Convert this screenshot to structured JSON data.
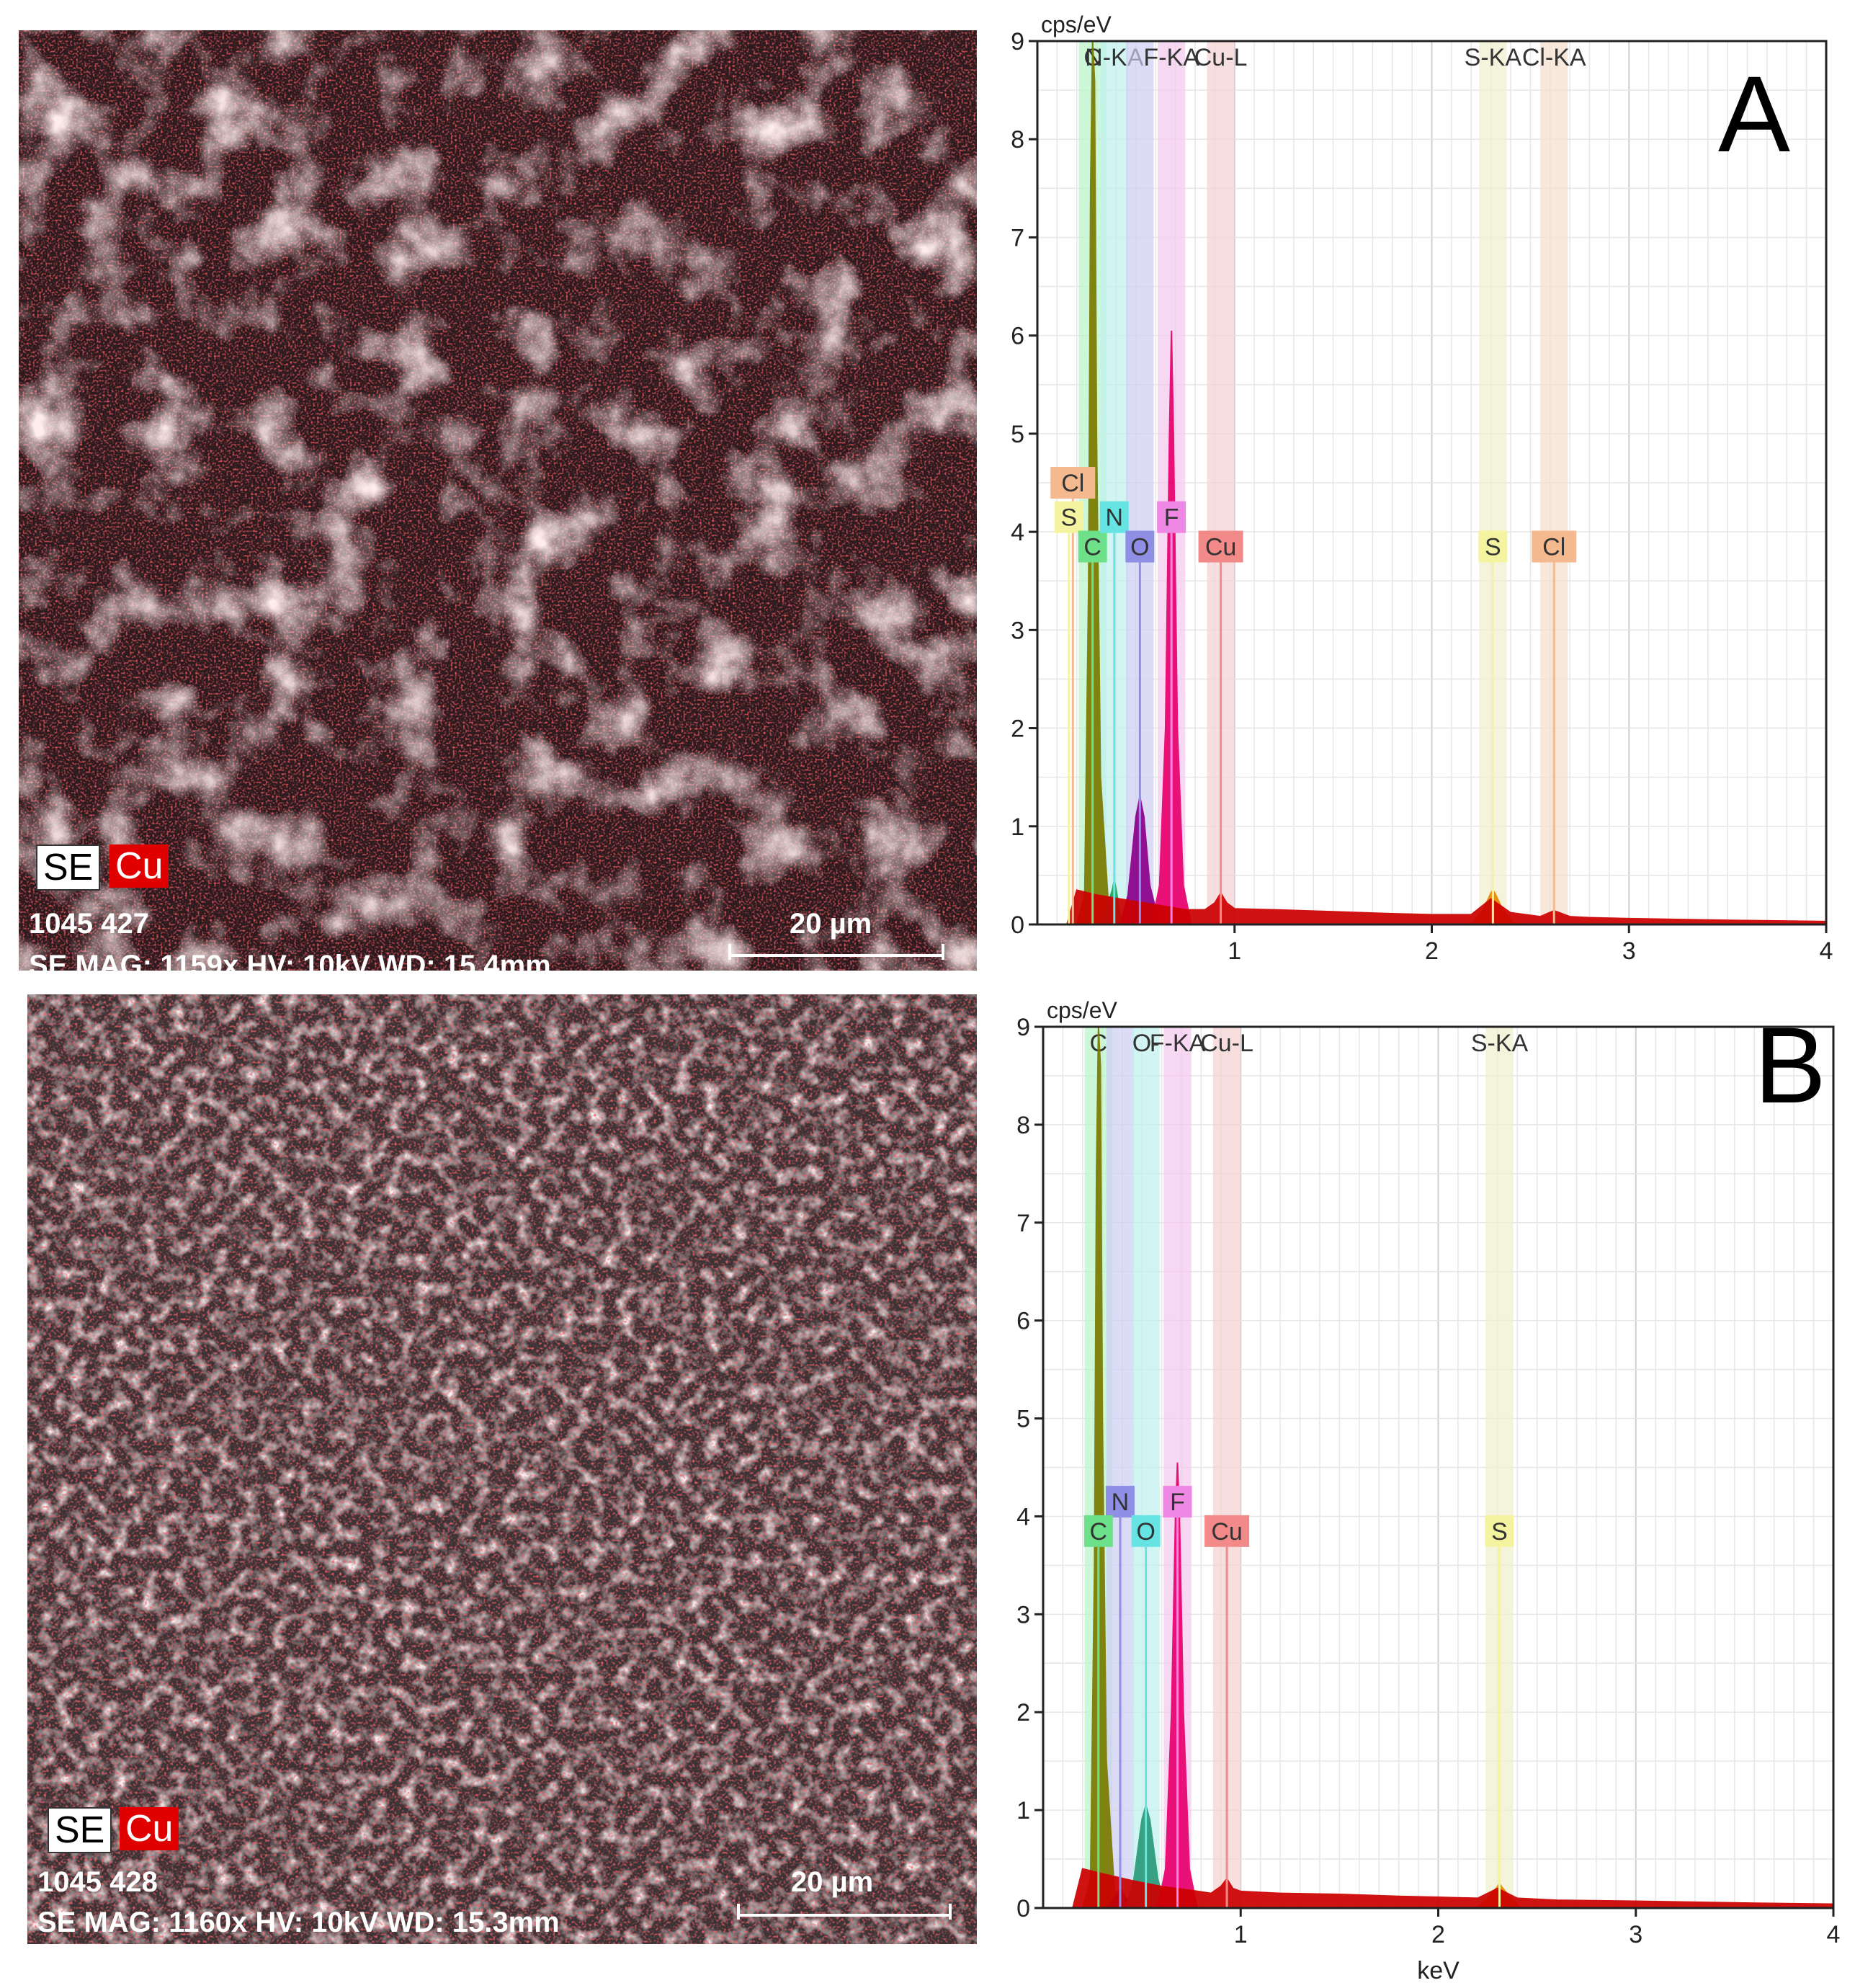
{
  "panels": [
    {
      "sem": {
        "badge_se": "SE",
        "badge_cu": "Cu",
        "sample_id": "1045 427",
        "info": "SE  MAG: 1159x  HV: 10kV  WD: 15.4mm",
        "scale_label": "20 µm"
      }
    },
    {
      "sem": {
        "badge_se": "SE",
        "badge_cu": "Cu",
        "sample_id": "1045 428",
        "info": "SE  MAG: 1160x  HV: 10kV  WD: 15.3mm",
        "scale_label": "20 µm"
      }
    }
  ],
  "chart_data": [
    {
      "type": "area",
      "panel_label": "A",
      "ylabel": "cps/eV",
      "xlabel": "",
      "xlim": [
        0.0,
        4.0
      ],
      "ylim": [
        0,
        9
      ],
      "x_ticks": [
        "1",
        "2",
        "3",
        "4"
      ],
      "y_ticks": [
        "0",
        "1",
        "2",
        "3",
        "4",
        "5",
        "6",
        "7",
        "8",
        "9"
      ],
      "grid": true,
      "element_bands": [
        {
          "label": "C",
          "x": 0.28,
          "color": "#b7f5c9"
        },
        {
          "label": "N-KA",
          "x": 0.39,
          "color": "#bff1ee"
        },
        {
          "label": "",
          "x": 0.52,
          "color": "#cfcdf2"
        },
        {
          "label": "F-KA",
          "x": 0.68,
          "color": "#f4c8ee"
        },
        {
          "label": "Cu-L",
          "x": 0.93,
          "color": "#f3d1d1"
        },
        {
          "label": "S-KA",
          "x": 2.31,
          "color": "#f0f0cf"
        },
        {
          "label": "Cl-KA",
          "x": 2.62,
          "color": "#f5ddcc"
        }
      ],
      "markers": [
        {
          "label": "Cl",
          "x": 0.18,
          "level": 4.5,
          "color": "#f4b98e"
        },
        {
          "label": "S",
          "x": 0.16,
          "level": 4.15,
          "color": "#f4f4a0"
        },
        {
          "label": "C",
          "x": 0.28,
          "level": 3.85,
          "color": "#6fe08a"
        },
        {
          "label": "N",
          "x": 0.39,
          "level": 4.15,
          "color": "#66e3e3"
        },
        {
          "label": "O",
          "x": 0.52,
          "level": 3.85,
          "color": "#8f8fe6"
        },
        {
          "label": "F",
          "x": 0.68,
          "level": 4.15,
          "color": "#ef88e4"
        },
        {
          "label": "Cu",
          "x": 0.93,
          "level": 3.85,
          "color": "#f28a8a"
        },
        {
          "label": "S",
          "x": 2.31,
          "level": 3.85,
          "color": "#f4f4a0"
        },
        {
          "label": "Cl",
          "x": 2.62,
          "level": 3.85,
          "color": "#f4b98e"
        }
      ],
      "series": [
        {
          "name": "C",
          "color": "#7a7a00",
          "x": [
            0.2,
            0.24,
            0.26,
            0.27,
            0.28,
            0.29,
            0.3,
            0.32,
            0.36,
            0.4
          ],
          "y": [
            0.0,
            0.3,
            3.5,
            7.5,
            9.0,
            8.6,
            5.0,
            1.5,
            0.2,
            0.0
          ]
        },
        {
          "name": "N",
          "color": "#1fa35a",
          "x": [
            0.3,
            0.34,
            0.38,
            0.39,
            0.4,
            0.42,
            0.45
          ],
          "y": [
            0.0,
            0.1,
            0.35,
            0.45,
            0.35,
            0.1,
            0.0
          ]
        },
        {
          "name": "O",
          "color": "#8a008a",
          "x": [
            0.42,
            0.46,
            0.5,
            0.52,
            0.54,
            0.57,
            0.62
          ],
          "y": [
            0.0,
            0.3,
            1.1,
            1.3,
            1.1,
            0.4,
            0.0
          ]
        },
        {
          "name": "F",
          "color": "#e8006e",
          "x": [
            0.58,
            0.62,
            0.65,
            0.67,
            0.68,
            0.69,
            0.71,
            0.74,
            0.78
          ],
          "y": [
            0.0,
            0.4,
            2.0,
            5.0,
            6.05,
            5.0,
            2.0,
            0.4,
            0.0
          ]
        },
        {
          "name": "S",
          "color": "#e48a00",
          "x": [
            2.2,
            2.26,
            2.3,
            2.31,
            2.32,
            2.36,
            2.42
          ],
          "y": [
            0.0,
            0.15,
            0.32,
            0.35,
            0.32,
            0.15,
            0.0
          ]
        },
        {
          "name": "spectrum",
          "color": "#cc0000",
          "x": [
            0.15,
            0.2,
            0.3,
            0.45,
            0.6,
            0.75,
            0.85,
            0.9,
            0.93,
            0.96,
            1.0,
            1.2,
            1.5,
            1.8,
            2.0,
            2.2,
            2.3,
            2.4,
            2.55,
            2.62,
            2.7,
            2.8,
            3.0,
            3.3,
            3.6,
            4.0
          ],
          "y": [
            0.0,
            0.35,
            0.3,
            0.25,
            0.2,
            0.15,
            0.15,
            0.22,
            0.32,
            0.22,
            0.16,
            0.15,
            0.13,
            0.11,
            0.1,
            0.1,
            0.26,
            0.12,
            0.08,
            0.14,
            0.08,
            0.07,
            0.06,
            0.05,
            0.04,
            0.03
          ]
        }
      ]
    },
    {
      "type": "area",
      "panel_label": "B",
      "ylabel": "cps/eV",
      "xlabel": "keV",
      "xlim": [
        0.0,
        4.0
      ],
      "ylim": [
        0,
        9
      ],
      "x_ticks": [
        "1",
        "2",
        "3",
        "4"
      ],
      "y_ticks": [
        "0",
        "1",
        "2",
        "3",
        "4",
        "5",
        "6",
        "7",
        "8",
        "9"
      ],
      "grid": true,
      "element_bands": [
        {
          "label": "C",
          "x": 0.28,
          "color": "#b7f5c9"
        },
        {
          "label": "",
          "x": 0.39,
          "color": "#cfcdf2"
        },
        {
          "label": "O-",
          "x": 0.52,
          "color": "#bff1ee"
        },
        {
          "label": "F-KA",
          "x": 0.68,
          "color": "#f4c8ee"
        },
        {
          "label": "Cu-L",
          "x": 0.93,
          "color": "#f3d1d1"
        },
        {
          "label": "S-KA",
          "x": 2.31,
          "color": "#f0f0cf"
        }
      ],
      "markers": [
        {
          "label": "N",
          "x": 0.39,
          "level": 4.15,
          "color": "#8f8fe6"
        },
        {
          "label": "F",
          "x": 0.68,
          "level": 4.15,
          "color": "#ef88e4"
        },
        {
          "label": "C",
          "x": 0.28,
          "level": 3.85,
          "color": "#6fe08a"
        },
        {
          "label": "O",
          "x": 0.52,
          "level": 3.85,
          "color": "#66e3e3"
        },
        {
          "label": "Cu",
          "x": 0.93,
          "level": 3.85,
          "color": "#f28a8a"
        },
        {
          "label": "S",
          "x": 2.31,
          "level": 3.85,
          "color": "#f4f4a0"
        }
      ],
      "series": [
        {
          "name": "C",
          "color": "#7a7a00",
          "x": [
            0.2,
            0.24,
            0.26,
            0.27,
            0.28,
            0.29,
            0.3,
            0.32,
            0.36,
            0.4
          ],
          "y": [
            0.0,
            0.3,
            3.5,
            7.5,
            9.0,
            8.6,
            5.0,
            1.5,
            0.2,
            0.0
          ]
        },
        {
          "name": "N",
          "color": "#3a2a8a",
          "x": [
            0.32,
            0.36,
            0.39,
            0.42,
            0.46
          ],
          "y": [
            0.0,
            0.1,
            0.2,
            0.1,
            0.0
          ]
        },
        {
          "name": "O",
          "color": "#2a9a7a",
          "x": [
            0.42,
            0.46,
            0.5,
            0.52,
            0.54,
            0.58,
            0.62
          ],
          "y": [
            0.0,
            0.3,
            0.9,
            1.05,
            0.9,
            0.3,
            0.0
          ]
        },
        {
          "name": "F",
          "color": "#e8006e",
          "x": [
            0.58,
            0.62,
            0.65,
            0.67,
            0.68,
            0.69,
            0.71,
            0.74,
            0.78
          ],
          "y": [
            0.0,
            0.4,
            2.0,
            4.0,
            4.55,
            4.0,
            2.0,
            0.4,
            0.0
          ]
        },
        {
          "name": "S",
          "color": "#e48a00",
          "x": [
            2.2,
            2.26,
            2.3,
            2.31,
            2.32,
            2.36,
            2.42
          ],
          "y": [
            0.0,
            0.12,
            0.22,
            0.25,
            0.22,
            0.12,
            0.0
          ]
        },
        {
          "name": "spectrum",
          "color": "#cc0000",
          "x": [
            0.15,
            0.2,
            0.3,
            0.45,
            0.6,
            0.75,
            0.85,
            0.9,
            0.93,
            0.96,
            1.0,
            1.2,
            1.5,
            1.8,
            2.0,
            2.2,
            2.3,
            2.4,
            2.6,
            3.0,
            3.3,
            3.6,
            4.0
          ],
          "y": [
            0.0,
            0.4,
            0.35,
            0.28,
            0.22,
            0.18,
            0.15,
            0.22,
            0.3,
            0.2,
            0.17,
            0.15,
            0.14,
            0.12,
            0.11,
            0.1,
            0.2,
            0.1,
            0.08,
            0.07,
            0.06,
            0.05,
            0.04
          ]
        }
      ]
    }
  ]
}
